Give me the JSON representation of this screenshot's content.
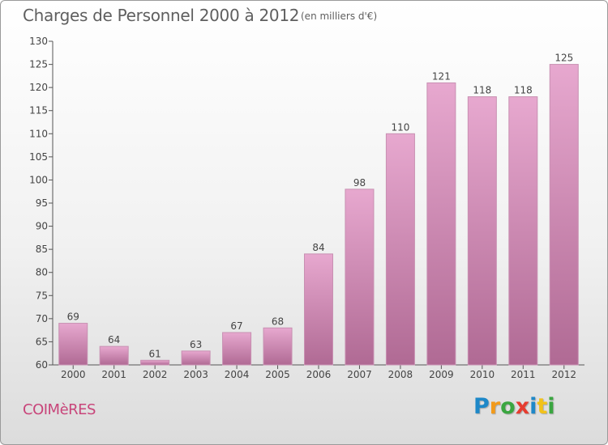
{
  "header": {
    "title": "Charges de Personnel 2000 à 2012",
    "subtitle": "(en milliers d'€)"
  },
  "footer": {
    "commune": "COIMèRES",
    "logo_text": "Proxiti",
    "logo_colors": [
      "#1e88c8",
      "#f29a1a",
      "#3aa640",
      "#e63c2f",
      "#1e88c8",
      "#f2c21a",
      "#3aa640"
    ]
  },
  "chart_data": {
    "type": "bar",
    "categories": [
      "2000",
      "2001",
      "2002",
      "2003",
      "2004",
      "2005",
      "2006",
      "2007",
      "2008",
      "2009",
      "2010",
      "2011",
      "2012"
    ],
    "values": [
      69,
      64,
      61,
      63,
      67,
      68,
      84,
      98,
      110,
      121,
      118,
      118,
      125
    ],
    "title": "Charges de Personnel 2000 à 2012",
    "subtitle": "(en milliers d'€)",
    "xlabel": "",
    "ylabel": "",
    "ylim": [
      60,
      130
    ],
    "yticks": [
      60,
      65,
      70,
      75,
      80,
      85,
      90,
      95,
      100,
      105,
      110,
      115,
      120,
      125,
      130
    ],
    "grid": false,
    "legend": "none",
    "bar_color_top": "#e7a8cf",
    "bar_color_bottom": "#b06a94"
  }
}
